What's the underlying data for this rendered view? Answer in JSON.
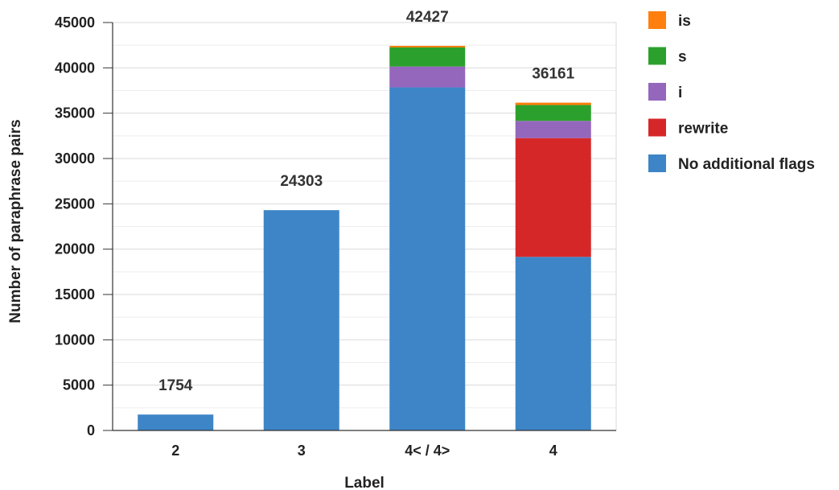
{
  "chart_data": {
    "type": "bar",
    "stacked": true,
    "categories": [
      "2",
      "3",
      "4< / 4>",
      "4"
    ],
    "series": [
      {
        "name": "No additional flags",
        "color": "#3d85c6",
        "values": [
          1754,
          24303,
          37850,
          19150
        ]
      },
      {
        "name": "rewrite",
        "color": "#d62728",
        "values": [
          0,
          0,
          0,
          13100
        ]
      },
      {
        "name": "i",
        "color": "#9467bd",
        "values": [
          0,
          0,
          2300,
          1900
        ]
      },
      {
        "name": "s",
        "color": "#2ca02c",
        "values": [
          0,
          0,
          2100,
          1750
        ]
      },
      {
        "name": "is",
        "color": "#ff7f0e",
        "values": [
          0,
          0,
          177,
          261
        ]
      }
    ],
    "totals": [
      "1754",
      "24303",
      "42427",
      "36161"
    ],
    "xlabel": "Label",
    "ylabel": "Number of paraphrase pairs",
    "ylim": [
      0,
      45000
    ],
    "yticks": [
      0,
      5000,
      10000,
      15000,
      20000,
      25000,
      30000,
      35000,
      40000,
      45000
    ],
    "grid": true,
    "legend": {
      "position": "right",
      "order": [
        "is",
        "s",
        "i",
        "rewrite",
        "No additional flags"
      ]
    }
  }
}
